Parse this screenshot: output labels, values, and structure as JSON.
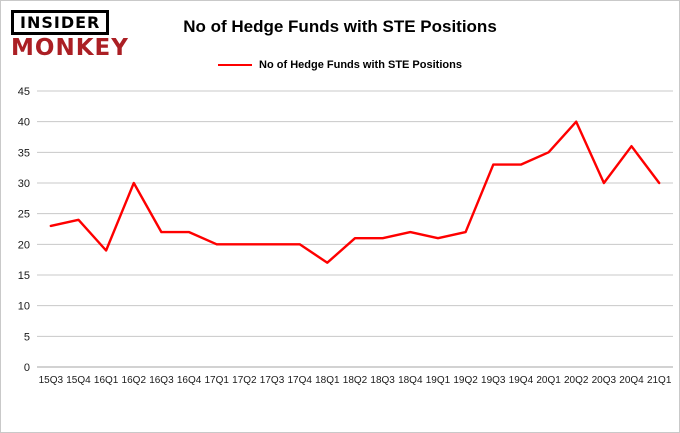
{
  "logo": {
    "line1": "INSIDER",
    "line2": "MONKEY"
  },
  "chart_data": {
    "type": "line",
    "title": "No of Hedge Funds with STE Positions",
    "legend_position": "top",
    "grid": true,
    "line_color": "#fe0000",
    "categories": [
      "15Q3",
      "15Q4",
      "16Q1",
      "16Q2",
      "16Q3",
      "16Q4",
      "17Q1",
      "17Q2",
      "17Q3",
      "17Q4",
      "18Q1",
      "18Q2",
      "18Q3",
      "18Q4",
      "19Q1",
      "19Q2",
      "19Q3",
      "19Q4",
      "20Q1",
      "20Q2",
      "20Q3",
      "20Q4",
      "21Q1"
    ],
    "series": [
      {
        "name": "No of Hedge Funds with STE Positions",
        "values": [
          23,
          24,
          19,
          30,
          22,
          22,
          20,
          20,
          20,
          20,
          17,
          21,
          21,
          22,
          21,
          22,
          33,
          33,
          35,
          40,
          30,
          36,
          30
        ]
      }
    ],
    "xlabel": "",
    "ylabel": "",
    "ylim": [
      0,
      45
    ],
    "ytick_step": 5
  }
}
